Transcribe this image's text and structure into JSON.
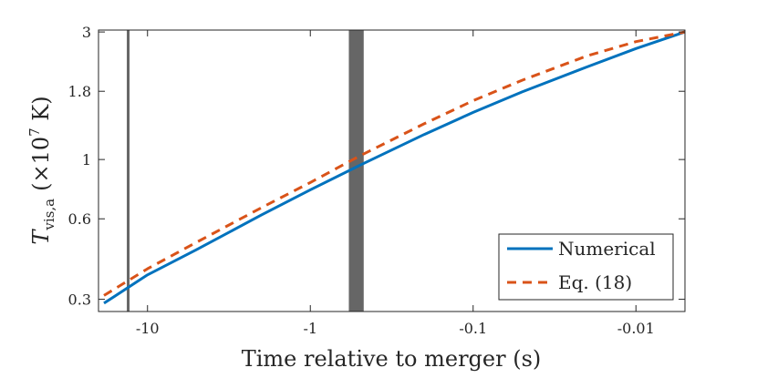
{
  "chart_data": {
    "type": "line",
    "xlabel": "Time relative to merger (s)",
    "ylabel": {
      "symbol": "T",
      "subscript": "vis,a",
      "unit_prefix": "(×10",
      "unit_exponent": "7",
      "unit_suffix": " K)"
    },
    "x_scale": "log (time before merger)",
    "y_scale": "log",
    "xlim": [
      -20,
      -0.005
    ],
    "ylim": [
      0.27,
      3.05
    ],
    "x_ticks": [
      {
        "value": -10,
        "label": "-10"
      },
      {
        "value": -1,
        "label": "-1"
      },
      {
        "value": -0.1,
        "label": "-0.1"
      },
      {
        "value": -0.01,
        "label": "-0.01"
      }
    ],
    "y_ticks": [
      {
        "value": 0.3,
        "label": "0.3"
      },
      {
        "value": 0.6,
        "label": "0.6"
      },
      {
        "value": 1,
        "label": "1"
      },
      {
        "value": 1.8,
        "label": "1.8"
      },
      {
        "value": 3,
        "label": "3"
      }
    ],
    "vertical_bands": [
      {
        "x_start": -13.4,
        "x_end": -13.0,
        "color": "#666666"
      },
      {
        "x_start": -0.58,
        "x_end": -0.47,
        "color": "#666666"
      }
    ],
    "series": [
      {
        "name": "Numerical",
        "color": "#0072BD",
        "style": "solid",
        "x": [
          -18.5,
          -10,
          -5,
          -2,
          -1,
          -0.5,
          -0.2,
          -0.1,
          -0.05,
          -0.02,
          -0.01,
          -0.005
        ],
        "y": [
          0.29,
          0.37,
          0.46,
          0.62,
          0.77,
          0.95,
          1.24,
          1.5,
          1.79,
          2.22,
          2.6,
          3.0
        ]
      },
      {
        "name": "Eq. (18)",
        "color": "#D95319",
        "style": "dashed",
        "x": [
          -18.5,
          -10,
          -5,
          -2,
          -1,
          -0.5,
          -0.2,
          -0.1,
          -0.05,
          -0.02,
          -0.01,
          -0.005
        ],
        "y": [
          0.31,
          0.39,
          0.49,
          0.66,
          0.82,
          1.03,
          1.36,
          1.66,
          1.98,
          2.44,
          2.76,
          3.0
        ]
      }
    ],
    "legend": {
      "position": "bottom-right",
      "entries": [
        "Numerical",
        "Eq. (18)"
      ]
    },
    "grid": false
  }
}
